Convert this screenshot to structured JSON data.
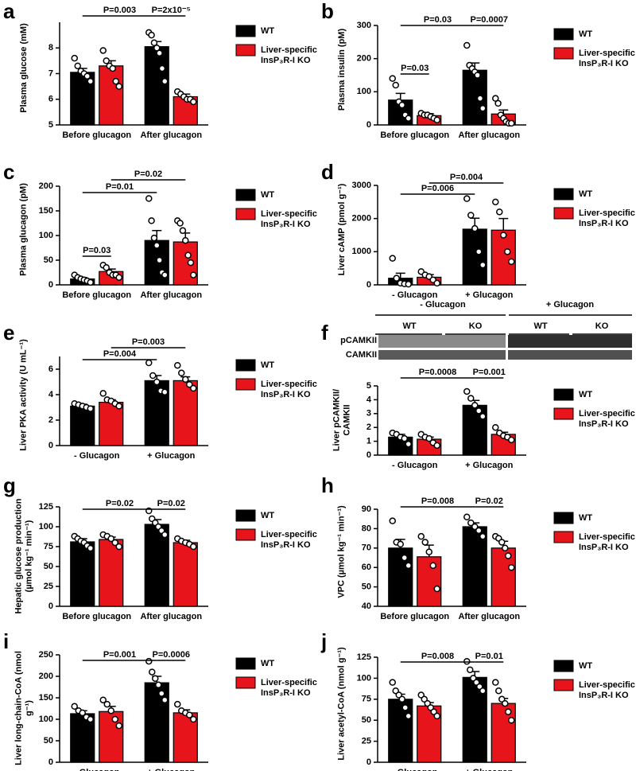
{
  "chart_data": [
    {
      "type": "bar",
      "panel": "a",
      "ylabel": "Plasma glucose (mM)",
      "categories": [
        "Before glucagon",
        "After glucagon"
      ],
      "ylim": [
        5,
        9
      ],
      "yticks": [
        5,
        6,
        7,
        8
      ],
      "series": [
        {
          "name": "WT",
          "color": "#000000",
          "values": [
            7.05,
            8.05
          ],
          "errors": [
            0.15,
            0.2
          ],
          "points": [
            [
              7.6,
              7.3,
              7.1,
              7.0,
              6.9,
              6.7
            ],
            [
              8.6,
              8.5,
              8.2,
              8.0,
              7.8,
              7.2,
              6.7
            ]
          ]
        },
        {
          "name": "Liver-specific InsP₃R-I KO",
          "color": "#e8141b",
          "values": [
            7.3,
            6.1
          ],
          "errors": [
            0.2,
            0.1
          ],
          "points": [
            [
              7.9,
              7.5,
              7.3,
              7.2,
              6.7,
              6.5
            ],
            [
              6.3,
              6.2,
              6.1,
              6.0,
              6.0,
              5.9
            ]
          ]
        }
      ],
      "annotations": [
        "P=0.003",
        "P=2x10⁻⁵"
      ]
    },
    {
      "type": "bar",
      "panel": "b",
      "ylabel": "Plasma insulin (pM)",
      "categories": [
        "Before glucagon",
        "After glucagon"
      ],
      "ylim": [
        0,
        300
      ],
      "yticks": [
        0,
        100,
        200,
        300
      ],
      "series": [
        {
          "name": "WT",
          "color": "#000000",
          "values": [
            75,
            165
          ],
          "errors": [
            20,
            22
          ],
          "points": [
            [
              140,
              120,
              70,
              60,
              30,
              20
            ],
            [
              240,
              180,
              170,
              160,
              150,
              80,
              50
            ]
          ]
        },
        {
          "name": "Liver-specific InsP₃R-I KO",
          "color": "#e8141b",
          "values": [
            28,
            33
          ],
          "errors": [
            6,
            12
          ],
          "points": [
            [
              35,
              30,
              30,
              25,
              20,
              15
            ],
            [
              80,
              65,
              30,
              20,
              10,
              5,
              5
            ]
          ]
        }
      ],
      "annotations": [
        "P=0.03",
        "P=0.0007",
        "P=0.03"
      ]
    },
    {
      "type": "bar",
      "panel": "c",
      "ylabel": "Plasma glucagon (pM)",
      "categories": [
        "Before glucagon",
        "After glucagon"
      ],
      "ylim": [
        0,
        200
      ],
      "yticks": [
        0,
        50,
        100,
        150,
        200
      ],
      "series": [
        {
          "name": "WT",
          "color": "#000000",
          "values": [
            12,
            90
          ],
          "errors": [
            3,
            20
          ],
          "points": [
            [
              20,
              15,
              12,
              10,
              8,
              5
            ],
            [
              175,
              130,
              95,
              80,
              50,
              25,
              20
            ]
          ]
        },
        {
          "name": "Liver-specific InsP₃R-I KO",
          "color": "#e8141b",
          "values": [
            27,
            87
          ],
          "errors": [
            5,
            18
          ],
          "points": [
            [
              40,
              35,
              25,
              20,
              20,
              15
            ],
            [
              130,
              125,
              110,
              90,
              60,
              45,
              20
            ]
          ]
        }
      ],
      "annotations": [
        "P=0.02",
        "P=0.01",
        "P=0.03"
      ]
    },
    {
      "type": "bar",
      "panel": "d",
      "ylabel": "Liver cAMP (pmol g⁻¹)",
      "categories": [
        "- Glucagon",
        "+ Glucagon"
      ],
      "ylim": [
        0,
        3000
      ],
      "yticks": [
        0,
        1000,
        2000,
        3000
      ],
      "series": [
        {
          "name": "WT",
          "color": "#000000",
          "values": [
            200,
            1680
          ],
          "errors": [
            150,
            330
          ],
          "points": [
            [
              800,
              200,
              50,
              30,
              20
            ],
            [
              2600,
              2100,
              1700,
              1000,
              600
            ]
          ]
        },
        {
          "name": "Liver-specific InsP₃R-I KO",
          "color": "#e8141b",
          "values": [
            230,
            1650
          ],
          "errors": [
            80,
            350
          ],
          "points": [
            [
              400,
              300,
              250,
              150,
              50
            ],
            [
              2500,
              2200,
              1500,
              1000,
              700
            ]
          ]
        }
      ],
      "annotations": [
        "P=0.004",
        "P=0.006"
      ]
    },
    {
      "type": "bar",
      "panel": "e",
      "ylabel": "Liver PKA activity (U mL⁻¹)",
      "categories": [
        "- Glucagon",
        "+ Glucagon"
      ],
      "ylim": [
        0,
        7
      ],
      "yticks": [
        0,
        2,
        4,
        6
      ],
      "series": [
        {
          "name": "WT",
          "color": "#000000",
          "values": [
            3.1,
            5.1
          ],
          "errors": [
            0.15,
            0.4
          ],
          "points": [
            [
              3.3,
              3.2,
              3.1,
              3.0,
              2.9
            ],
            [
              6.5,
              5.5,
              5.0,
              4.3,
              4.2
            ]
          ]
        },
        {
          "name": "Liver-specific InsP₃R-I KO",
          "color": "#e8141b",
          "values": [
            3.4,
            5.1
          ],
          "errors": [
            0.2,
            0.3
          ],
          "points": [
            [
              4.1,
              3.6,
              3.5,
              3.3,
              3.1
            ],
            [
              6.3,
              5.7,
              5.2,
              4.8,
              4.5
            ]
          ]
        }
      ],
      "annotations": [
        "P=0.003",
        "P=0.004"
      ]
    },
    {
      "type": "bar",
      "panel": "f",
      "ylabel": "Liver pCAMKII/ CAMKII",
      "categories": [
        "- Glucagon",
        "+ Glucagon"
      ],
      "ylim": [
        0,
        5
      ],
      "yticks": [
        0,
        1,
        2,
        3,
        4,
        5
      ],
      "blot": {
        "treatments": [
          "- Glucagon",
          "+ Glucagon"
        ],
        "genotypes": [
          "WT",
          "KO",
          "WT",
          "KO"
        ],
        "bands": [
          "pCAMKII",
          "CAMKII"
        ]
      },
      "series": [
        {
          "name": "WT",
          "color": "#000000",
          "values": [
            1.3,
            3.6
          ],
          "errors": [
            0.2,
            0.35
          ],
          "points": [
            [
              1.6,
              1.5,
              1.3,
              1.2,
              0.8
            ],
            [
              4.6,
              4.1,
              3.6,
              3.2,
              2.8
            ]
          ]
        },
        {
          "name": "Liver-specific InsP₃R-I KO",
          "color": "#e8141b",
          "values": [
            1.15,
            1.5
          ],
          "errors": [
            0.15,
            0.15
          ],
          "points": [
            [
              1.5,
              1.3,
              1.2,
              0.9,
              0.7
            ],
            [
              2.0,
              1.6,
              1.4,
              1.3,
              1.1
            ]
          ]
        }
      ],
      "annotations": [
        "P=0.0008",
        "P=0.001"
      ]
    },
    {
      "type": "bar",
      "panel": "g",
      "ylabel": "Hepatic glucose production (µmol kg⁻¹ min⁻¹)",
      "categories": [
        "Before glucagon",
        "After glucagon"
      ],
      "ylim": [
        0,
        125
      ],
      "yticks": [
        0,
        25,
        50,
        75,
        100,
        125
      ],
      "series": [
        {
          "name": "WT",
          "color": "#000000",
          "values": [
            81,
            103
          ],
          "errors": [
            4,
            6
          ],
          "points": [
            [
              88,
              85,
              82,
              80,
              76,
              73
            ],
            [
              120,
              110,
              105,
              100,
              95,
              90
            ]
          ]
        },
        {
          "name": "Liver-specific InsP₃R-I KO",
          "color": "#e8141b",
          "values": [
            84,
            80
          ],
          "errors": [
            3,
            3
          ],
          "points": [
            [
              90,
              88,
              85,
              80,
              75
            ],
            [
              85,
              82,
              80,
              78,
              75
            ]
          ]
        }
      ],
      "annotations": [
        "P=0.02",
        "P=0.02"
      ]
    },
    {
      "type": "bar",
      "panel": "h",
      "ylabel": "VPC (µmol kg⁻¹ min⁻¹)",
      "categories": [
        "Before glucagon",
        "After glucagon"
      ],
      "ylim": [
        40,
        90
      ],
      "yticks": [
        40,
        50,
        60,
        70,
        80,
        90
      ],
      "series": [
        {
          "name": "WT",
          "color": "#000000",
          "values": [
            70,
            81
          ],
          "errors": [
            4.5,
            2
          ],
          "points": [
            [
              84,
              73,
              72,
              65,
              61
            ],
            [
              86,
              83,
              81,
              79,
              76
            ]
          ]
        },
        {
          "name": "Liver-specific InsP₃R-I KO",
          "color": "#e8141b",
          "values": [
            65.5,
            70
          ],
          "errors": [
            6,
            3.5
          ],
          "points": [
            [
              76,
              73,
              68,
              61,
              49
            ],
            [
              76,
              75,
              73,
              70,
              66,
              60
            ]
          ]
        }
      ],
      "annotations": [
        "P=0.008",
        "P=0.02"
      ]
    },
    {
      "type": "bar",
      "panel": "i",
      "ylabel": "Liver long-chain-CoA (nmol g⁻¹)",
      "categories": [
        "- Glucagon",
        "+ Glucagon"
      ],
      "ylim": [
        0,
        250
      ],
      "yticks": [
        0,
        50,
        100,
        150,
        200,
        250
      ],
      "series": [
        {
          "name": "WT",
          "color": "#000000",
          "values": [
            113,
            185
          ],
          "errors": [
            7,
            15
          ],
          "points": [
            [
              130,
              120,
              115,
              105,
              100
            ],
            [
              235,
              210,
              195,
              180,
              160,
              145
            ]
          ]
        },
        {
          "name": "Liver-specific InsP₃R-I KO",
          "color": "#e8141b",
          "values": [
            118,
            115
          ],
          "errors": [
            12,
            7
          ],
          "points": [
            [
              145,
              135,
              120,
              100,
              85
            ],
            [
              135,
              120,
              115,
              110,
              100
            ]
          ]
        }
      ],
      "annotations": [
        "P=0.001",
        "P=0.0006"
      ]
    },
    {
      "type": "bar",
      "panel": "j",
      "ylabel": "Liver acetyl-CoA (nmol g⁻¹)",
      "categories": [
        "- Glucagon",
        "+ Glucagon"
      ],
      "ylim": [
        0,
        125
      ],
      "yticks": [
        0,
        25,
        50,
        75,
        100,
        125
      ],
      "series": [
        {
          "name": "WT",
          "color": "#000000",
          "values": [
            75,
            101
          ],
          "errors": [
            6,
            7
          ],
          "points": [
            [
              95,
              85,
              80,
              75,
              65,
              55
            ],
            [
              120,
              110,
              100,
              95,
              90,
              85
            ]
          ]
        },
        {
          "name": "Liver-specific InsP₃R-I KO",
          "color": "#e8141b",
          "values": [
            67,
            70
          ],
          "errors": [
            4,
            6
          ],
          "points": [
            [
              80,
              75,
              70,
              65,
              60,
              55
            ],
            [
              95,
              85,
              75,
              70,
              60,
              50
            ]
          ]
        }
      ],
      "annotations": [
        "P=0.008",
        "P=0.01"
      ]
    }
  ]
}
